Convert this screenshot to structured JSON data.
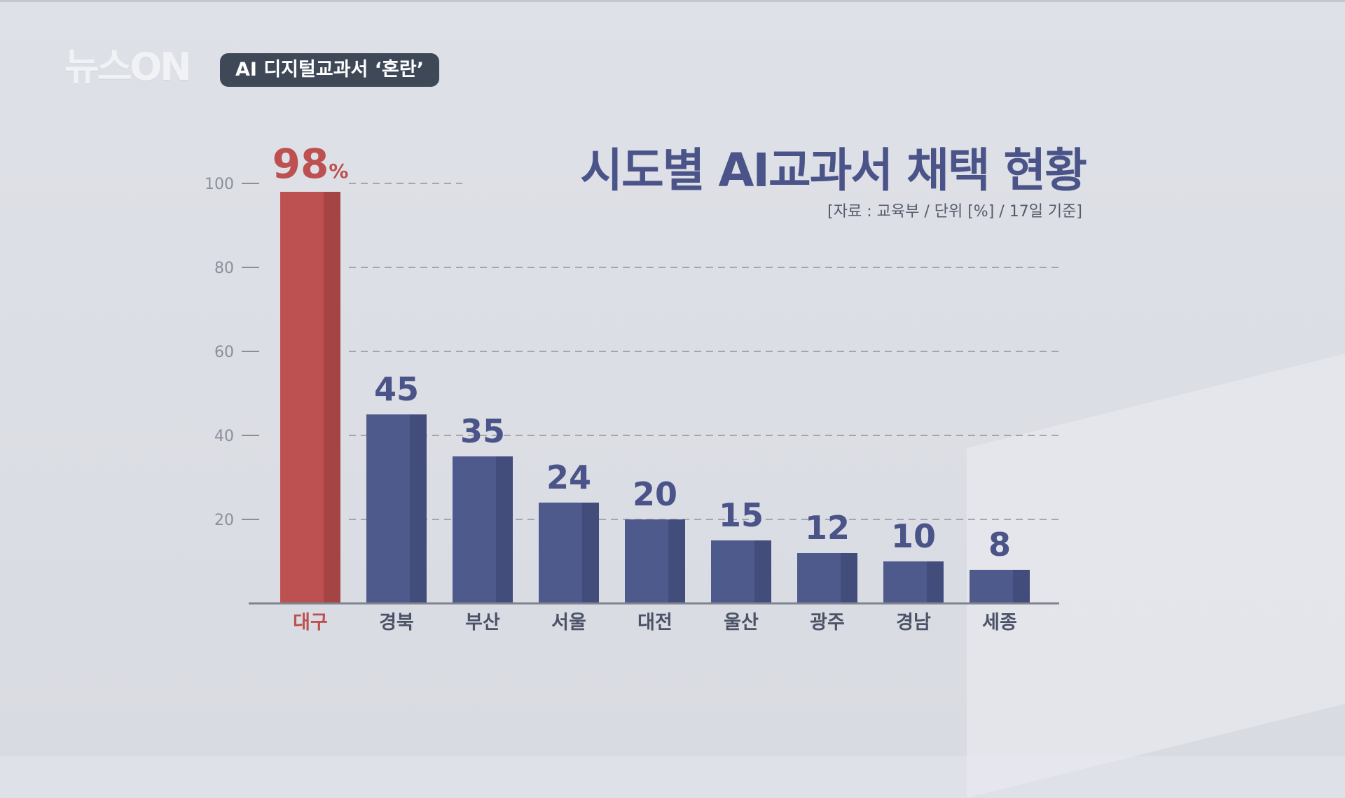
{
  "header": {
    "logo_text": "뉴스ON",
    "program_tag": "AI 디지털교과서 ‘혼란’"
  },
  "chart_data": {
    "type": "bar",
    "title": "시도별 AI교과서 채택 현황",
    "source": "[자료 : 교육부 / 단위 [%] / 17일 기준]",
    "categories": [
      "대구",
      "경북",
      "부산",
      "서울",
      "대전",
      "울산",
      "광주",
      "경남",
      "세종"
    ],
    "values": [
      98,
      45,
      35,
      24,
      20,
      15,
      12,
      10,
      8
    ],
    "value_labels": [
      "98",
      "45",
      "35",
      "24",
      "20",
      "15",
      "12",
      "10",
      "8"
    ],
    "highlight_unit": "%",
    "highlight_index": 0,
    "ylim": [
      0,
      100
    ],
    "yticks": [
      20,
      40,
      60,
      80,
      100
    ],
    "grid": true,
    "colors": {
      "bar": "#4f5a8c",
      "bar_shade": "#434d7c",
      "highlight": "#bd5050",
      "highlight_shade": "#a44444",
      "label": "#4b5488",
      "tick": "#8a8f9c"
    }
  }
}
